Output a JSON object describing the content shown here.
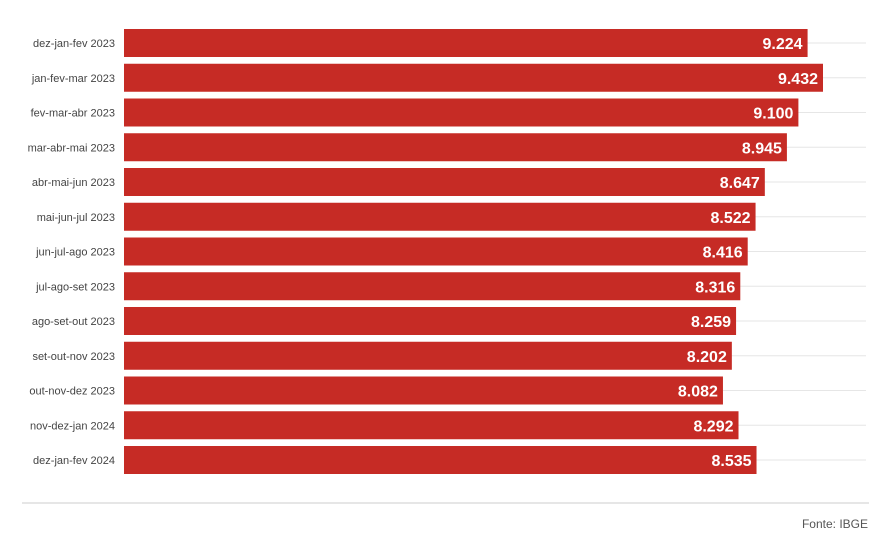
{
  "chart_data": {
    "type": "bar",
    "orientation": "horizontal",
    "categories": [
      "dez-jan-fev 2023",
      "jan-fev-mar 2023",
      "fev-mar-abr 2023",
      "mar-abr-mai 2023",
      "abr-mai-jun 2023",
      "mai-jun-jul 2023",
      "jun-jul-ago 2023",
      "jul-ago-set 2023",
      "ago-set-out 2023",
      "set-out-nov 2023",
      "out-nov-dez 2023",
      "nov-dez-jan 2024",
      "dez-jan-fev 2024"
    ],
    "values": [
      9224,
      9432,
      9100,
      8945,
      8647,
      8522,
      8416,
      8316,
      8259,
      8202,
      8082,
      8292,
      8535
    ],
    "value_labels": [
      "9.224",
      "9.432",
      "9.100",
      "8.945",
      "8.647",
      "8.522",
      "8.416",
      "8.316",
      "8.259",
      "8.202",
      "8.082",
      "8.292",
      "8.535"
    ],
    "xlim": [
      0,
      10000
    ],
    "bar_color": "#c62b25",
    "label_color": "#ffffff",
    "grid": true
  },
  "footer": {
    "source": "Fonte: IBGE"
  }
}
